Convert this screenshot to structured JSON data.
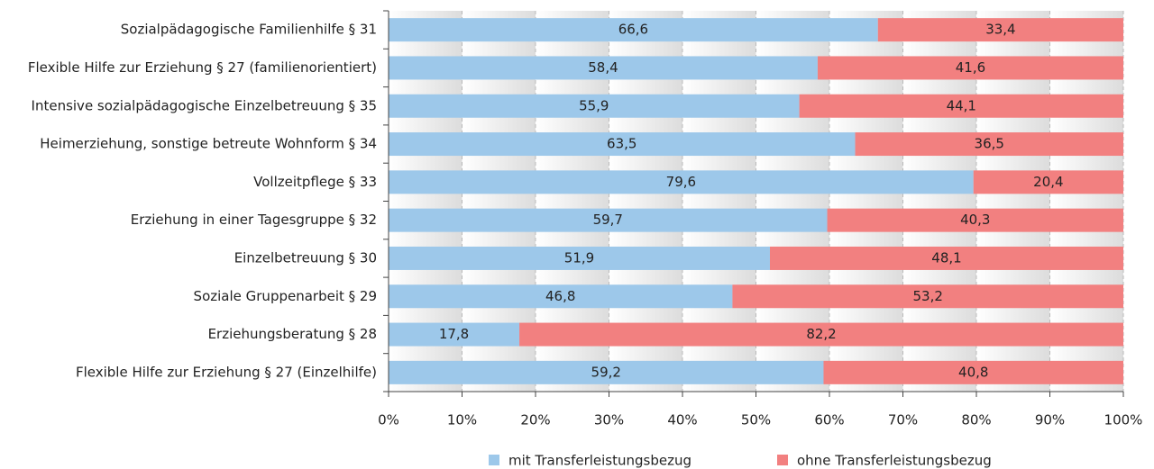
{
  "chart_data": {
    "type": "stacked-barh",
    "categories": [
      "Sozialpädagogische Familienhilfe § 31",
      "Flexible Hilfe zur Erziehung § 27 (familienorientiert)",
      "Intensive sozialpädagogische Einzelbetreuung § 35",
      "Heimerziehung, sonstige betreute Wohnform § 34",
      "Vollzeitpflege § 33",
      "Erziehung in einer Tagesgruppe § 32",
      "Einzelbetreuung § 30",
      "Soziale Gruppenarbeit § 29",
      "Erziehungsberatung § 28",
      "Flexible Hilfe zur Erziehung § 27 (Einzelhilfe)"
    ],
    "series": [
      {
        "name": "mit Transferleistungsbezug",
        "color": "#9dc8ea",
        "values": [
          66.6,
          58.4,
          55.9,
          63.5,
          79.6,
          59.7,
          51.9,
          46.8,
          17.8,
          59.2
        ],
        "value_labels": [
          "66,6",
          "58,4",
          "55,9",
          "63,5",
          "79,6",
          "59,7",
          "51,9",
          "46,8",
          "17,8",
          "59,2"
        ]
      },
      {
        "name": "ohne Transferleistungsbezug",
        "color": "#f28080",
        "values": [
          33.4,
          41.6,
          44.1,
          36.5,
          20.4,
          40.3,
          48.1,
          53.2,
          82.2,
          40.8
        ],
        "value_labels": [
          "33,4",
          "41,6",
          "44,1",
          "36,5",
          "20,4",
          "40,3",
          "48,1",
          "53,2",
          "82,2",
          "40,8"
        ]
      }
    ],
    "xlim": [
      0,
      100
    ],
    "xticks": [
      {
        "value": 0,
        "label": "0%"
      },
      {
        "value": 10,
        "label": "10%"
      },
      {
        "value": 20,
        "label": "20%"
      },
      {
        "value": 30,
        "label": "30%"
      },
      {
        "value": 40,
        "label": "40%"
      },
      {
        "value": 50,
        "label": "50%"
      },
      {
        "value": 60,
        "label": "60%"
      },
      {
        "value": 70,
        "label": "70%"
      },
      {
        "value": 80,
        "label": "80%"
      },
      {
        "value": 90,
        "label": "90%"
      },
      {
        "value": 100,
        "label": "100%"
      }
    ],
    "grid": true,
    "legend": "bottom"
  }
}
